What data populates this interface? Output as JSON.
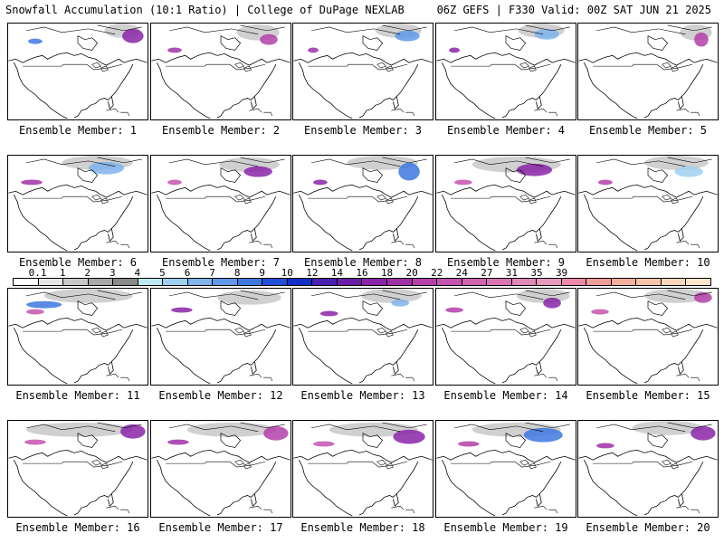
{
  "header": {
    "title_left": "Snowfall Accumulation (10:1 Ratio) | College of DuPage NEXLAB",
    "title_right": "06Z GEFS | F330 Valid: 00Z SAT JUN 21 2025"
  },
  "panels": [
    {
      "caption": "Ensemble Member: 1"
    },
    {
      "caption": "Ensemble Member: 2"
    },
    {
      "caption": "Ensemble Member: 3"
    },
    {
      "caption": "Ensemble Member: 4"
    },
    {
      "caption": "Ensemble Member: 5"
    },
    {
      "caption": "Ensemble Member: 6"
    },
    {
      "caption": "Ensemble Member: 7"
    },
    {
      "caption": "Ensemble Member: 8"
    },
    {
      "caption": "Ensemble Member: 9"
    },
    {
      "caption": "Ensemble Member: 10"
    },
    {
      "caption": "Ensemble Member: 11"
    },
    {
      "caption": "Ensemble Member: 12"
    },
    {
      "caption": "Ensemble Member: 13"
    },
    {
      "caption": "Ensemble Member: 14"
    },
    {
      "caption": "Ensemble Member: 15"
    },
    {
      "caption": "Ensemble Member: 16"
    },
    {
      "caption": "Ensemble Member: 17"
    },
    {
      "caption": "Ensemble Member: 18"
    },
    {
      "caption": "Ensemble Member: 19"
    },
    {
      "caption": "Ensemble Member: 20"
    }
  ],
  "colorbar": {
    "labels": [
      "0.1",
      "1",
      "2",
      "3",
      "4",
      "5",
      "6",
      "7",
      "8",
      "9",
      "10",
      "12",
      "14",
      "16",
      "18",
      "20",
      "22",
      "24",
      "27",
      "31",
      "35",
      "39"
    ],
    "colors": [
      "#ffffff",
      "#e6e6e6",
      "#c8c8c8",
      "#a8a8a8",
      "#8a8a8a",
      "#bfe8f2",
      "#9fd0f0",
      "#7fb4ec",
      "#5f98e8",
      "#3d78e0",
      "#2050d8",
      "#1030c8",
      "#4a20b0",
      "#6a1ea8",
      "#8a24a8",
      "#a030a8",
      "#b440a8",
      "#c454b0",
      "#d064b0",
      "#d874b4",
      "#e088b8",
      "#e898bc",
      "#ec8aa8",
      "#f09c98",
      "#f4b09c",
      "#f6c4a8",
      "#f8d6b8",
      "#fae6cc"
    ]
  }
}
